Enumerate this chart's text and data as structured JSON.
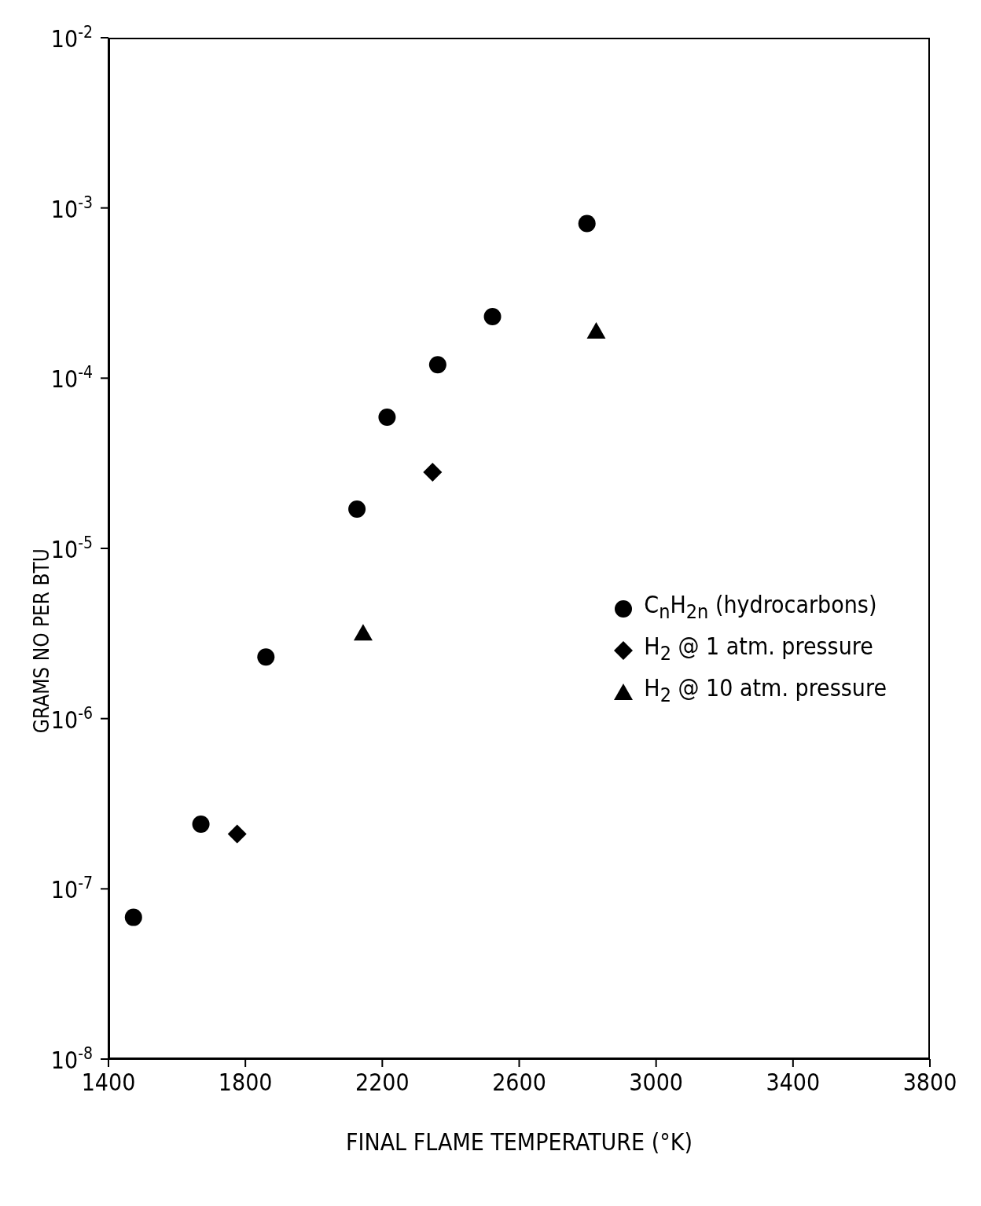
{
  "chart_data": {
    "type": "scatter",
    "xlabel": "FINAL FLAME TEMPERATURE (°K)",
    "ylabel": "GRAMS NO PER BTU",
    "log": "y",
    "grid": false,
    "legend": "right",
    "xlim": [
      1400,
      3800
    ],
    "xticks": [
      1400,
      1800,
      2200,
      2600,
      3000,
      3400,
      3800
    ],
    "ylim": [
      1e-08,
      0.01
    ],
    "yticks": [
      {
        "value": 1e-08,
        "label": "10$^{-8}$"
      },
      {
        "value": 1e-07,
        "label": "10$^{-7}$"
      },
      {
        "value": 1e-06,
        "label": "10$^{-6}$"
      },
      {
        "value": 1e-05,
        "label": "10$^{-5}$"
      },
      {
        "value": 0.0001,
        "label": "10$^{-4}$"
      },
      {
        "value": 0.001,
        "label": "10$^{-3}$"
      },
      {
        "value": 0.01,
        "label": "10$^{-2}$"
      }
    ],
    "series": [
      {
        "name": "C$_{n}$H$_{2n}$  (hydrocarbons)",
        "color": "#000000",
        "marker": "circle",
        "x": [
          1473,
          1670,
          1860,
          2126,
          2214,
          2362,
          2522,
          2798
        ],
        "values": [
          6.8e-08,
          2.4e-07,
          2.3e-06,
          1.7e-05,
          5.9e-05,
          0.00012,
          0.00023,
          0.00081
        ]
      },
      {
        "name": "H$_{2}$  @ 1 atm. pressure",
        "color": "#000000",
        "marker": "diamond",
        "x": [
          1776,
          2347
        ],
        "values": [
          2.1e-07,
          2.8e-05
        ]
      },
      {
        "name": "H$_{2}$ @ 10 atm. pressure",
        "color": "#000000",
        "marker": "triangle",
        "x": [
          2144,
          2825
        ],
        "values": [
          3.2e-06,
          0.00019
        ]
      }
    ]
  }
}
